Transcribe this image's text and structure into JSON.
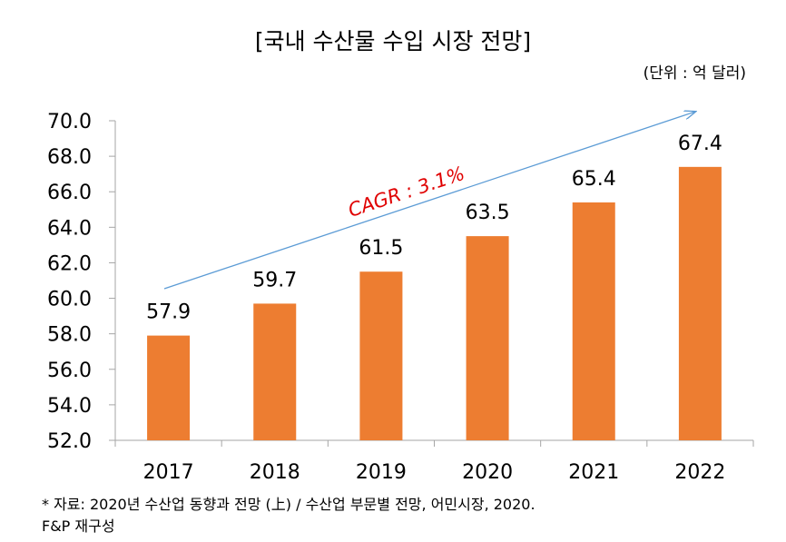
{
  "chart_data": {
    "type": "bar",
    "title": "[국내 수산물 수입 시장 전망]",
    "unit": "(단위 : 억 달러)",
    "categories": [
      "2017",
      "2018",
      "2019",
      "2020",
      "2021",
      "2022"
    ],
    "values": [
      57.9,
      59.7,
      61.5,
      63.5,
      65.4,
      67.4
    ],
    "value_labels": [
      "57.9",
      "59.7",
      "61.5",
      "63.5",
      "65.4",
      "67.4"
    ],
    "ylim": [
      52.0,
      70.0
    ],
    "yticks": [
      "52.0",
      "54.0",
      "56.0",
      "58.0",
      "60.0",
      "62.0",
      "64.0",
      "66.0",
      "68.0",
      "70.0"
    ],
    "grid": false,
    "annotation": {
      "text": "CAGR : 3.1%",
      "color": "#e00000"
    },
    "colors": {
      "bar": "#ed7d31",
      "arrow": "#5b9bd5",
      "axis": "#a6a6a6"
    }
  },
  "source_note": {
    "line1": "* 자료: 2020년 수산업 동향과 전망 (上) / 수산업 부문별 전망, 어민시장, 2020.",
    "line2": "F&P 재구성"
  }
}
